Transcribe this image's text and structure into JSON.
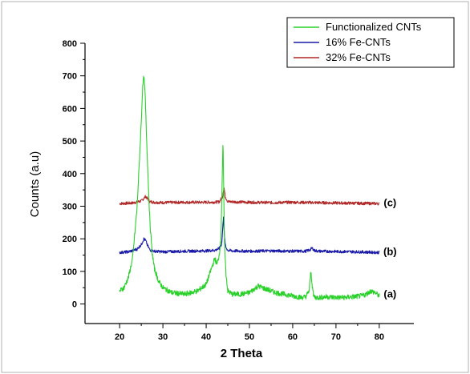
{
  "chart_data": {
    "type": "line",
    "title": "",
    "xlabel": "2 Theta",
    "ylabel": "Counts (a.u)",
    "xlim": [
      12,
      88
    ],
    "ylim": [
      -60,
      800
    ],
    "x_ticks": [
      "20",
      "30",
      "40",
      "50",
      "60",
      "70",
      "80"
    ],
    "y_ticks": [
      "0",
      "100",
      "200",
      "300",
      "400",
      "500",
      "600",
      "700",
      "800"
    ],
    "grid": false,
    "legend_position": "top-right",
    "series": [
      {
        "name": "Functionalized CNTs",
        "color": "#2bd12b",
        "label": "(a)",
        "x": [
          20,
          21,
          22,
          23,
          24,
          24.5,
          25,
          25.3,
          25.6,
          25.9,
          26.2,
          26.6,
          27,
          27.5,
          28,
          29,
          30,
          32,
          35,
          38,
          40,
          41,
          42,
          42.5,
          43,
          43.4,
          43.7,
          43.9,
          44.1,
          44.3,
          44.6,
          45,
          46,
          48,
          50,
          52,
          53,
          54,
          56,
          58,
          60,
          62,
          63,
          63.8,
          64.2,
          64.5,
          64.8,
          65.3,
          66,
          68,
          70,
          72,
          74,
          76,
          77,
          78,
          79,
          80
        ],
        "y": [
          40,
          50,
          80,
          140,
          290,
          420,
          560,
          660,
          700,
          640,
          520,
          380,
          250,
          160,
          110,
          70,
          50,
          35,
          30,
          40,
          60,
          100,
          140,
          120,
          150,
          200,
          380,
          500,
          300,
          160,
          90,
          40,
          30,
          30,
          35,
          55,
          50,
          45,
          35,
          30,
          25,
          20,
          22,
          40,
          100,
          60,
          25,
          20,
          20,
          22,
          20,
          20,
          22,
          25,
          30,
          40,
          35,
          25
        ]
      },
      {
        "name": "16% Fe-CNTs",
        "color": "#1a1aa8",
        "label": "(b)",
        "x": [
          20,
          22,
          24,
          25,
          25.6,
          26,
          26.5,
          27,
          28,
          30,
          35,
          40,
          42,
          43,
          43.6,
          44,
          44.2,
          44.5,
          45,
          46,
          50,
          55,
          60,
          63,
          64,
          64.5,
          65,
          66,
          70,
          75,
          80
        ],
        "y": [
          158,
          160,
          168,
          182,
          200,
          195,
          178,
          166,
          162,
          160,
          162,
          163,
          165,
          170,
          185,
          270,
          210,
          175,
          165,
          163,
          162,
          163,
          162,
          162,
          166,
          172,
          164,
          162,
          161,
          160,
          158
        ]
      },
      {
        "name": "32% Fe-CNTs",
        "color": "#b02828",
        "label": "(c)",
        "x": [
          20,
          23,
          25,
          26,
          26.5,
          27,
          28,
          30,
          35,
          40,
          43,
          43.8,
          44.1,
          44.4,
          45,
          50,
          55,
          60,
          65,
          70,
          75,
          80
        ],
        "y": [
          308,
          310,
          316,
          330,
          322,
          314,
          312,
          311,
          312,
          312,
          313,
          330,
          360,
          330,
          314,
          312,
          311,
          312,
          311,
          310,
          309,
          308
        ]
      }
    ],
    "annotations": [
      {
        "text": "(a)",
        "x": 82.5,
        "y": 30
      },
      {
        "text": "(b)",
        "x": 82.5,
        "y": 160
      },
      {
        "text": "(c)",
        "x": 82.5,
        "y": 310
      }
    ]
  }
}
